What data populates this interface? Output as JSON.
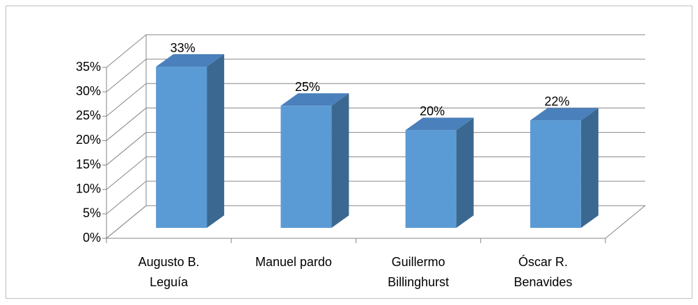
{
  "chart_data": {
    "type": "bar3d",
    "categories": [
      "Augusto B.\nLeguía",
      "Manuel pardo",
      "Guillermo\nBillinghurst",
      "Óscar R.\nBenavides"
    ],
    "values": [
      33,
      25,
      20,
      22
    ],
    "value_labels": [
      "33%",
      "25%",
      "20%",
      "22%"
    ],
    "color": "#5b9bd5",
    "ylim": [
      0,
      35
    ],
    "yticks": [
      {
        "value": 0,
        "label": "0%"
      },
      {
        "value": 5,
        "label": "5%"
      },
      {
        "value": 10,
        "label": "10%"
      },
      {
        "value": 15,
        "label": "15%"
      },
      {
        "value": 20,
        "label": "20%"
      },
      {
        "value": 25,
        "label": "25%"
      },
      {
        "value": 30,
        "label": "30%"
      },
      {
        "value": 35,
        "label": "35%"
      }
    ],
    "grid": true
  }
}
